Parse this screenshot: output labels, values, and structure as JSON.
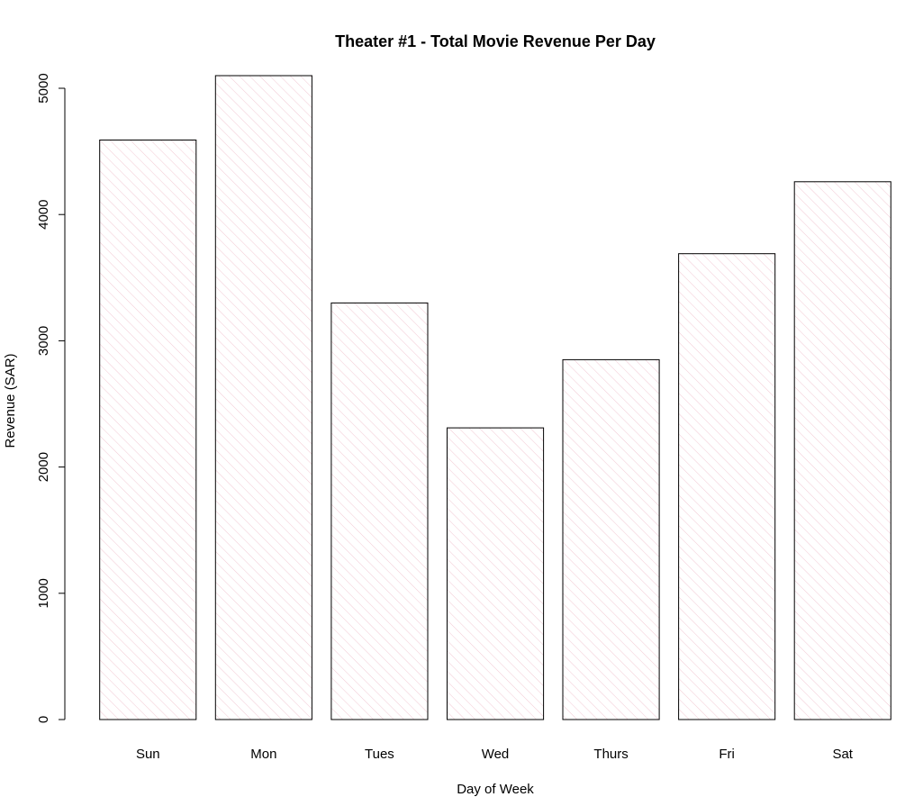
{
  "chart_data": {
    "type": "bar",
    "title": "Theater #1 - Total Movie Revenue Per Day",
    "xlabel": "Day of Week",
    "ylabel": "Revenue (SAR)",
    "categories": [
      "Sun",
      "Mon",
      "Tues",
      "Wed",
      "Thurs",
      "Fri",
      "Sat"
    ],
    "values": [
      4590,
      5100,
      3300,
      2310,
      2850,
      3690,
      4260
    ],
    "ylim": [
      0,
      5100
    ],
    "yticks": [
      0,
      1000,
      2000,
      3000,
      4000,
      5000
    ],
    "grid": false,
    "legend": "none",
    "bar_fill": "hatched",
    "hatch_color": "#f2c9d4",
    "bar_border_color": "#000000"
  }
}
